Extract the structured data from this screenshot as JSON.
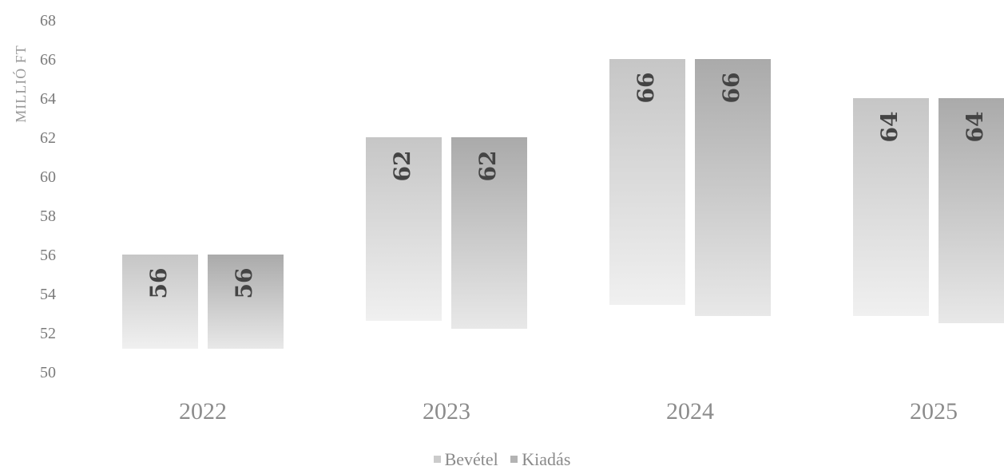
{
  "chart_data": {
    "type": "bar",
    "title": "",
    "xlabel": "",
    "ylabel": "MILLIÓ FT",
    "categories": [
      "2022",
      "2023",
      "2024",
      "2025"
    ],
    "series": [
      {
        "name": "Bevétel",
        "values": [
          56,
          62,
          66,
          64
        ],
        "color": "#cbcbcb"
      },
      {
        "name": "Kiadás",
        "values": [
          56,
          62,
          66,
          64
        ],
        "color": "#b3b3b3"
      }
    ],
    "ylim": [
      50,
      68
    ],
    "yticks": [
      50,
      52,
      54,
      56,
      58,
      60,
      62,
      64,
      66,
      68
    ],
    "grid": false,
    "legend_position": "bottom"
  },
  "legend": {
    "items": [
      {
        "label": "Bevétel",
        "color": "#cbcbcb"
      },
      {
        "label": "Kiadás",
        "color": "#b3b3b3"
      }
    ]
  }
}
